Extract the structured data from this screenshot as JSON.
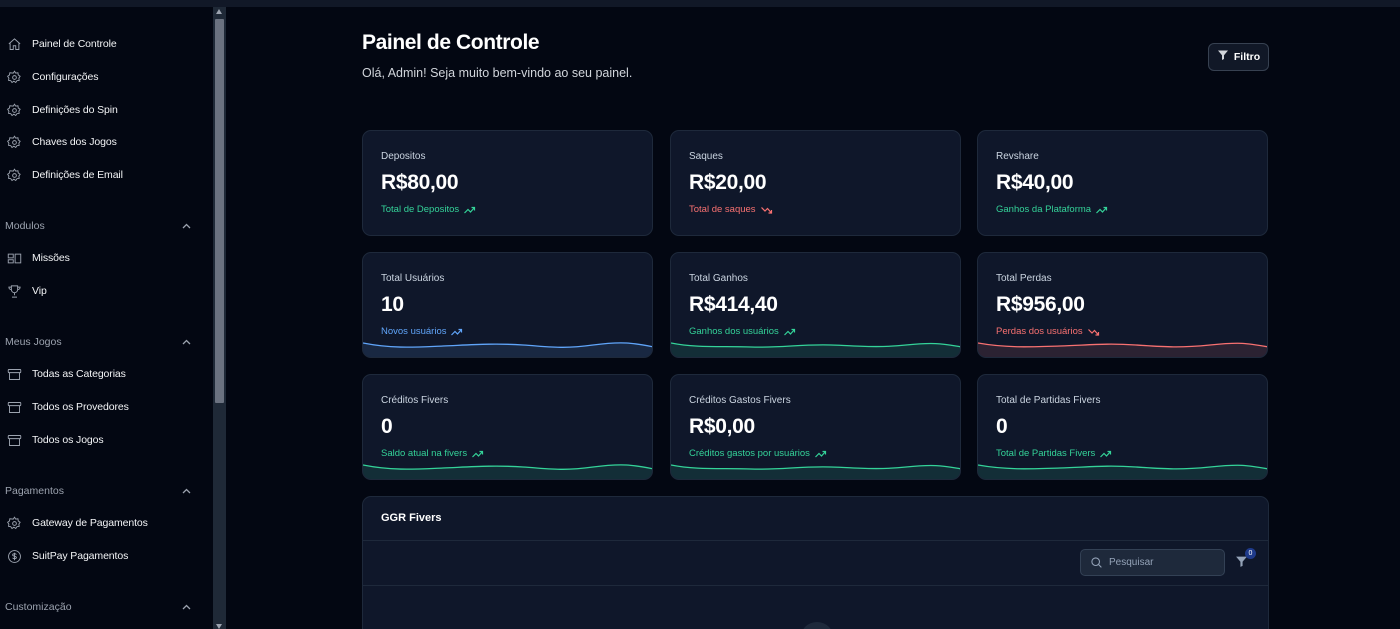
{
  "sidebar": {
    "items_top": [
      {
        "label": "Painel de Controle",
        "icon": "home-icon"
      },
      {
        "label": "Configurações",
        "icon": "gear-icon"
      },
      {
        "label": "Definições do Spin",
        "icon": "gear-icon"
      },
      {
        "label": "Chaves dos Jogos",
        "icon": "gear-icon"
      },
      {
        "label": "Definições de Email",
        "icon": "gear-icon"
      }
    ],
    "sections": [
      {
        "title": "Modulos",
        "items": [
          {
            "label": "Missões",
            "icon": "layout-icon"
          },
          {
            "label": "Vip",
            "icon": "trophy-icon"
          }
        ]
      },
      {
        "title": "Meus Jogos",
        "items": [
          {
            "label": "Todas as Categorias",
            "icon": "archive-icon"
          },
          {
            "label": "Todos os Provedores",
            "icon": "archive-icon"
          },
          {
            "label": "Todos os Jogos",
            "icon": "archive-icon"
          }
        ]
      },
      {
        "title": "Pagamentos",
        "items": [
          {
            "label": "Gateway de Pagamentos",
            "icon": "gear-icon"
          },
          {
            "label": "SuitPay Pagamentos",
            "icon": "dollar-circle-icon"
          }
        ]
      },
      {
        "title": "Customização",
        "items": []
      }
    ]
  },
  "header": {
    "title": "Painel de Controle",
    "subtitle": "Olá, Admin! Seja muito bem-vindo ao seu painel.",
    "filter_label": "Filtro"
  },
  "cards": [
    {
      "label": "Depositos",
      "value": "R$80,00",
      "sub": "Total de Depositos",
      "trend": "up",
      "color": "green",
      "spark": false
    },
    {
      "label": "Saques",
      "value": "R$20,00",
      "sub": "Total de saques",
      "trend": "down",
      "color": "red",
      "spark": false
    },
    {
      "label": "Revshare",
      "value": "R$40,00",
      "sub": "Ganhos da Plataforma",
      "trend": "up",
      "color": "green",
      "spark": false
    },
    {
      "label": "Total Usuários",
      "value": "10",
      "sub": "Novos usuários",
      "trend": "up",
      "color": "blue",
      "spark": true
    },
    {
      "label": "Total Ganhos",
      "value": "R$414,40",
      "sub": "Ganhos dos usuários",
      "trend": "up",
      "color": "green",
      "spark": true
    },
    {
      "label": "Total Perdas",
      "value": "R$956,00",
      "sub": "Perdas dos usuários",
      "trend": "down",
      "color": "red",
      "spark": true
    },
    {
      "label": "Créditos Fivers",
      "value": "0",
      "sub": "Saldo atual na fivers",
      "trend": "up",
      "color": "green",
      "spark": true
    },
    {
      "label": "Créditos Gastos Fivers",
      "value": "R$0,00",
      "sub": "Créditos gastos por usuários",
      "trend": "up",
      "color": "green",
      "spark": true
    },
    {
      "label": "Total de Partidas Fivers",
      "value": "0",
      "sub": "Total de Partidas Fivers",
      "trend": "up",
      "color": "green",
      "spark": true
    }
  ],
  "ggr": {
    "title": "GGR Fivers",
    "search_placeholder": "Pesquisar",
    "filter_count": "0"
  },
  "colors": {
    "green": "#34d399",
    "red": "#f87171",
    "blue": "#60a5fa",
    "background": "#030712",
    "card": "#0f172a"
  }
}
